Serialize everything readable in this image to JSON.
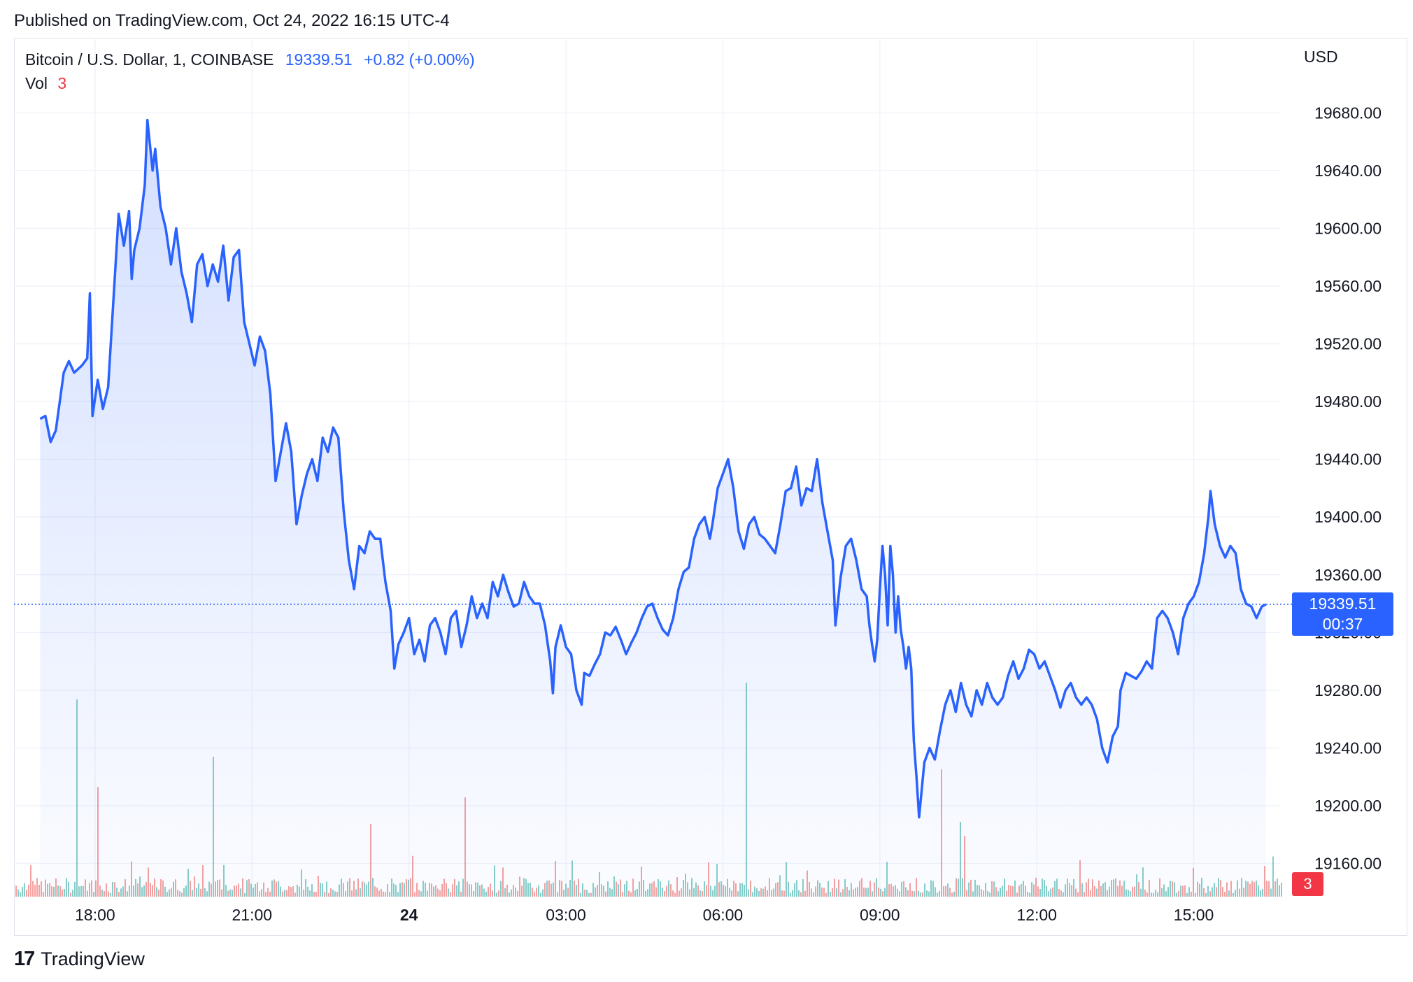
{
  "published_text": "Published on TradingView.com, Oct 24, 2022 16:15 UTC-4",
  "legend": {
    "symbol": "Bitcoin / U.S. Dollar, 1, COINBASE",
    "last_price": "19339.51",
    "change": "+0.82 (+0.00%)"
  },
  "volume_legend": {
    "label": "Vol",
    "value": "3"
  },
  "currency": "USD",
  "price_badge": {
    "price": "19339.51",
    "countdown": "00:37"
  },
  "volume_badge": "3",
  "brand": {
    "name": "TradingView",
    "logo_glyph": "17"
  },
  "colors": {
    "line": "#2962ff",
    "area_top": "#2962ff",
    "grid": "#f0f3fa",
    "vol_up": "#26a69a",
    "vol_down": "#ef5350"
  },
  "chart_data": {
    "type": "area",
    "y_ticks": [
      19160,
      19200,
      19240,
      19280,
      19320,
      19360,
      19400,
      19440,
      19480,
      19520,
      19560,
      19600,
      19640,
      19680
    ],
    "ylim": [
      19137,
      19732
    ],
    "x_ticks": [
      {
        "label": "18:00",
        "h": 1.0,
        "bold": false
      },
      {
        "label": "21:00",
        "h": 4.0,
        "bold": false
      },
      {
        "label": "24",
        "h": 7.0,
        "bold": true
      },
      {
        "label": "03:00",
        "h": 10.0,
        "bold": false
      },
      {
        "label": "06:00",
        "h": 13.0,
        "bold": false
      },
      {
        "label": "09:00",
        "h": 16.0,
        "bold": false
      },
      {
        "label": "12:00",
        "h": 19.0,
        "bold": false
      },
      {
        "label": "15:00",
        "h": 22.0,
        "bold": false
      }
    ],
    "xlim": [
      -0.55,
      23.65
    ],
    "current_price": 19339.51,
    "series": [
      {
        "name": "BTCUSD",
        "points": [
          [
            -0.05,
            19468
          ],
          [
            0.05,
            19470
          ],
          [
            0.15,
            19452
          ],
          [
            0.25,
            19460
          ],
          [
            0.4,
            19500
          ],
          [
            0.5,
            19508
          ],
          [
            0.6,
            19500
          ],
          [
            0.75,
            19505
          ],
          [
            0.85,
            19510
          ],
          [
            0.9,
            19555
          ],
          [
            0.95,
            19470
          ],
          [
            1.05,
            19495
          ],
          [
            1.15,
            19475
          ],
          [
            1.25,
            19490
          ],
          [
            1.35,
            19550
          ],
          [
            1.45,
            19610
          ],
          [
            1.55,
            19588
          ],
          [
            1.65,
            19612
          ],
          [
            1.7,
            19565
          ],
          [
            1.75,
            19585
          ],
          [
            1.85,
            19600
          ],
          [
            1.95,
            19630
          ],
          [
            2.0,
            19675
          ],
          [
            2.1,
            19640
          ],
          [
            2.15,
            19655
          ],
          [
            2.25,
            19615
          ],
          [
            2.35,
            19600
          ],
          [
            2.45,
            19575
          ],
          [
            2.55,
            19600
          ],
          [
            2.65,
            19570
          ],
          [
            2.75,
            19555
          ],
          [
            2.85,
            19535
          ],
          [
            2.95,
            19575
          ],
          [
            3.05,
            19582
          ],
          [
            3.15,
            19560
          ],
          [
            3.25,
            19575
          ],
          [
            3.35,
            19563
          ],
          [
            3.45,
            19588
          ],
          [
            3.55,
            19550
          ],
          [
            3.65,
            19580
          ],
          [
            3.75,
            19585
          ],
          [
            3.85,
            19535
          ],
          [
            3.95,
            19520
          ],
          [
            4.05,
            19505
          ],
          [
            4.15,
            19525
          ],
          [
            4.25,
            19515
          ],
          [
            4.35,
            19485
          ],
          [
            4.45,
            19425
          ],
          [
            4.55,
            19445
          ],
          [
            4.65,
            19465
          ],
          [
            4.75,
            19445
          ],
          [
            4.85,
            19395
          ],
          [
            4.95,
            19415
          ],
          [
            5.05,
            19430
          ],
          [
            5.15,
            19440
          ],
          [
            5.25,
            19425
          ],
          [
            5.35,
            19455
          ],
          [
            5.45,
            19445
          ],
          [
            5.55,
            19462
          ],
          [
            5.65,
            19455
          ],
          [
            5.75,
            19405
          ],
          [
            5.85,
            19370
          ],
          [
            5.95,
            19350
          ],
          [
            6.05,
            19380
          ],
          [
            6.15,
            19375
          ],
          [
            6.25,
            19390
          ],
          [
            6.35,
            19385
          ],
          [
            6.45,
            19385
          ],
          [
            6.55,
            19355
          ],
          [
            6.65,
            19335
          ],
          [
            6.72,
            19295
          ],
          [
            6.8,
            19312
          ],
          [
            6.9,
            19320
          ],
          [
            7.0,
            19330
          ],
          [
            7.1,
            19305
          ],
          [
            7.2,
            19315
          ],
          [
            7.3,
            19300
          ],
          [
            7.4,
            19325
          ],
          [
            7.5,
            19330
          ],
          [
            7.6,
            19320
          ],
          [
            7.7,
            19305
          ],
          [
            7.8,
            19330
          ],
          [
            7.9,
            19335
          ],
          [
            8.0,
            19310
          ],
          [
            8.1,
            19325
          ],
          [
            8.2,
            19345
          ],
          [
            8.3,
            19330
          ],
          [
            8.4,
            19340
          ],
          [
            8.5,
            19330
          ],
          [
            8.6,
            19355
          ],
          [
            8.7,
            19345
          ],
          [
            8.8,
            19360
          ],
          [
            8.9,
            19348
          ],
          [
            9.0,
            19338
          ],
          [
            9.1,
            19340
          ],
          [
            9.2,
            19355
          ],
          [
            9.3,
            19345
          ],
          [
            9.4,
            19340
          ],
          [
            9.5,
            19340
          ],
          [
            9.6,
            19325
          ],
          [
            9.7,
            19300
          ],
          [
            9.75,
            19278
          ],
          [
            9.8,
            19310
          ],
          [
            9.9,
            19325
          ],
          [
            10.0,
            19310
          ],
          [
            10.1,
            19305
          ],
          [
            10.2,
            19280
          ],
          [
            10.3,
            19270
          ],
          [
            10.35,
            19292
          ],
          [
            10.45,
            19290
          ],
          [
            10.55,
            19298
          ],
          [
            10.65,
            19305
          ],
          [
            10.75,
            19320
          ],
          [
            10.85,
            19318
          ],
          [
            10.95,
            19324
          ],
          [
            11.05,
            19315
          ],
          [
            11.15,
            19305
          ],
          [
            11.25,
            19313
          ],
          [
            11.35,
            19320
          ],
          [
            11.45,
            19330
          ],
          [
            11.55,
            19338
          ],
          [
            11.65,
            19340
          ],
          [
            11.75,
            19330
          ],
          [
            11.85,
            19322
          ],
          [
            11.95,
            19318
          ],
          [
            12.05,
            19330
          ],
          [
            12.15,
            19350
          ],
          [
            12.25,
            19362
          ],
          [
            12.35,
            19365
          ],
          [
            12.45,
            19385
          ],
          [
            12.55,
            19395
          ],
          [
            12.65,
            19400
          ],
          [
            12.75,
            19385
          ],
          [
            12.8,
            19395
          ],
          [
            12.9,
            19420
          ],
          [
            13.0,
            19430
          ],
          [
            13.1,
            19440
          ],
          [
            13.2,
            19420
          ],
          [
            13.3,
            19390
          ],
          [
            13.4,
            19378
          ],
          [
            13.5,
            19395
          ],
          [
            13.6,
            19400
          ],
          [
            13.7,
            19388
          ],
          [
            13.8,
            19385
          ],
          [
            13.9,
            19380
          ],
          [
            14.0,
            19375
          ],
          [
            14.1,
            19395
          ],
          [
            14.2,
            19418
          ],
          [
            14.3,
            19420
          ],
          [
            14.4,
            19435
          ],
          [
            14.5,
            19408
          ],
          [
            14.6,
            19420
          ],
          [
            14.7,
            19418
          ],
          [
            14.8,
            19440
          ],
          [
            14.9,
            19410
          ],
          [
            15.0,
            19390
          ],
          [
            15.1,
            19370
          ],
          [
            15.15,
            19325
          ],
          [
            15.25,
            19358
          ],
          [
            15.35,
            19380
          ],
          [
            15.45,
            19385
          ],
          [
            15.55,
            19370
          ],
          [
            15.65,
            19350
          ],
          [
            15.75,
            19345
          ],
          [
            15.8,
            19325
          ],
          [
            15.85,
            19312
          ],
          [
            15.9,
            19300
          ],
          [
            15.95,
            19315
          ],
          [
            16.0,
            19350
          ],
          [
            16.05,
            19380
          ],
          [
            16.1,
            19360
          ],
          [
            16.15,
            19325
          ],
          [
            16.2,
            19380
          ],
          [
            16.25,
            19360
          ],
          [
            16.3,
            19320
          ],
          [
            16.35,
            19345
          ],
          [
            16.4,
            19322
          ],
          [
            16.45,
            19310
          ],
          [
            16.5,
            19295
          ],
          [
            16.55,
            19310
          ],
          [
            16.6,
            19295
          ],
          [
            16.65,
            19245
          ],
          [
            16.7,
            19220
          ],
          [
            16.75,
            19192
          ],
          [
            16.85,
            19230
          ],
          [
            16.95,
            19240
          ],
          [
            17.05,
            19232
          ],
          [
            17.15,
            19252
          ],
          [
            17.25,
            19270
          ],
          [
            17.35,
            19280
          ],
          [
            17.45,
            19265
          ],
          [
            17.55,
            19285
          ],
          [
            17.65,
            19270
          ],
          [
            17.75,
            19262
          ],
          [
            17.85,
            19280
          ],
          [
            17.95,
            19270
          ],
          [
            18.05,
            19285
          ],
          [
            18.15,
            19275
          ],
          [
            18.25,
            19270
          ],
          [
            18.35,
            19275
          ],
          [
            18.45,
            19290
          ],
          [
            18.55,
            19300
          ],
          [
            18.65,
            19288
          ],
          [
            18.75,
            19295
          ],
          [
            18.85,
            19308
          ],
          [
            18.95,
            19305
          ],
          [
            19.05,
            19295
          ],
          [
            19.15,
            19300
          ],
          [
            19.25,
            19290
          ],
          [
            19.35,
            19280
          ],
          [
            19.45,
            19268
          ],
          [
            19.55,
            19280
          ],
          [
            19.65,
            19285
          ],
          [
            19.75,
            19275
          ],
          [
            19.85,
            19270
          ],
          [
            19.95,
            19275
          ],
          [
            20.05,
            19270
          ],
          [
            20.15,
            19260
          ],
          [
            20.25,
            19240
          ],
          [
            20.35,
            19230
          ],
          [
            20.45,
            19248
          ],
          [
            20.55,
            19255
          ],
          [
            20.6,
            19280
          ],
          [
            20.7,
            19292
          ],
          [
            20.8,
            19290
          ],
          [
            20.9,
            19288
          ],
          [
            21.0,
            19293
          ],
          [
            21.1,
            19300
          ],
          [
            21.2,
            19295
          ],
          [
            21.3,
            19330
          ],
          [
            21.4,
            19335
          ],
          [
            21.5,
            19330
          ],
          [
            21.6,
            19320
          ],
          [
            21.7,
            19305
          ],
          [
            21.8,
            19330
          ],
          [
            21.9,
            19340
          ],
          [
            22.0,
            19345
          ],
          [
            22.1,
            19355
          ],
          [
            22.2,
            19375
          ],
          [
            22.28,
            19400
          ],
          [
            22.32,
            19418
          ],
          [
            22.4,
            19395
          ],
          [
            22.5,
            19380
          ],
          [
            22.6,
            19372
          ],
          [
            22.7,
            19380
          ],
          [
            22.8,
            19375
          ],
          [
            22.9,
            19350
          ],
          [
            23.0,
            19340
          ],
          [
            23.1,
            19338
          ],
          [
            23.2,
            19330
          ],
          [
            23.3,
            19338
          ],
          [
            23.38,
            19339.51
          ]
        ]
      }
    ]
  }
}
